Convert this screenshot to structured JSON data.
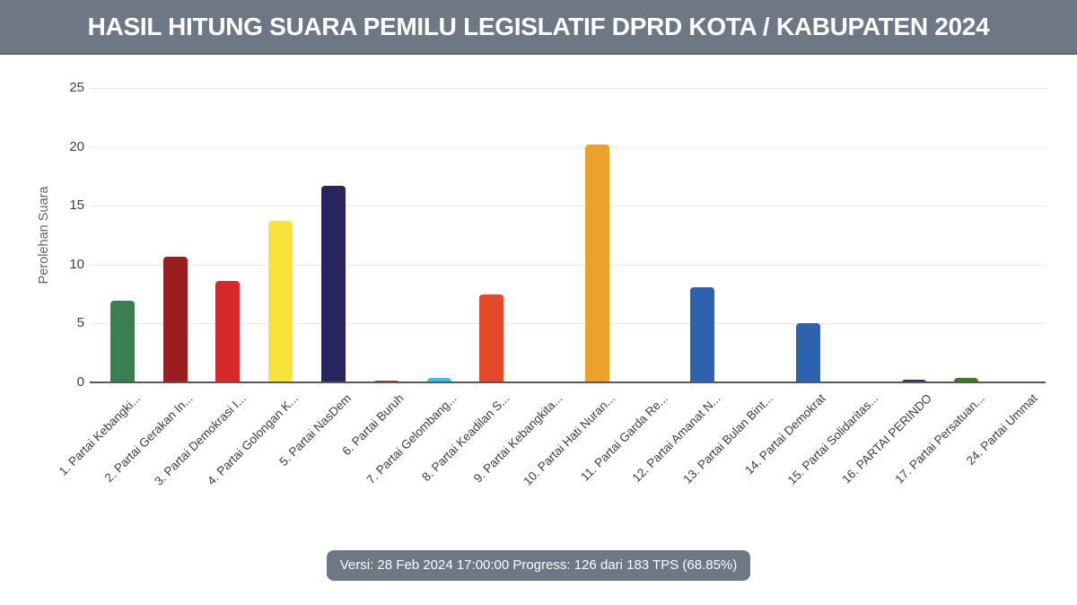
{
  "header": {
    "title": "HASIL HITUNG SUARA PEMILU LEGISLATIF DPRD KOTA / KABUPATEN 2024",
    "bg_color": "#6e7884"
  },
  "footer": {
    "text": "Versi: 28 Feb 2024 17:00:00 Progress: 126 dari 183 TPS (68.85%)",
    "bg_color": "#6e7884"
  },
  "chart_data": {
    "type": "bar",
    "title": "",
    "xlabel": "",
    "ylabel": "Perolehan Suara",
    "ylim": [
      0,
      25
    ],
    "yticks": [
      0,
      5,
      10,
      15,
      20,
      25
    ],
    "grid": true,
    "legend": "none",
    "categories": [
      "1. Partai Kebangki...",
      "2. Partai Gerakan In...",
      "3. Partai Demokrasi I...",
      "4. Partai Golongan K...",
      "5. Partai NasDem",
      "6. Partai Buruh",
      "7. Partai Gelombang...",
      "8. Partai Keadilan S...",
      "9. Partai Kebangkita...",
      "10. Partai Hati Nuran...",
      "11. Partai Garda Re...",
      "12. Partai Amanat N...",
      "13. Partai Bulan Bint...",
      "14. Partai Demokrat",
      "15. Partai Solidaritas...",
      "16. PARTAI PERINDO",
      "17. Partai Persatuan...",
      "24. Partai Ummat"
    ],
    "values": [
      6.9,
      10.7,
      8.6,
      13.7,
      16.7,
      0.15,
      0.4,
      7.5,
      0,
      20.2,
      0,
      8.1,
      0,
      5.0,
      0,
      0.25,
      0.35,
      0
    ],
    "colors": [
      "#388050",
      "#9a1d20",
      "#d7282b",
      "#f8e23c",
      "#282460",
      "#bf3b1c",
      "#4ab8e9",
      "#e2492b",
      "#cccccc",
      "#eda12b",
      "#cccccc",
      "#2d62ae",
      "#cccccc",
      "#2d62ae",
      "#cccccc",
      "#1f3864",
      "#3c7a1f",
      "#cccccc"
    ]
  }
}
